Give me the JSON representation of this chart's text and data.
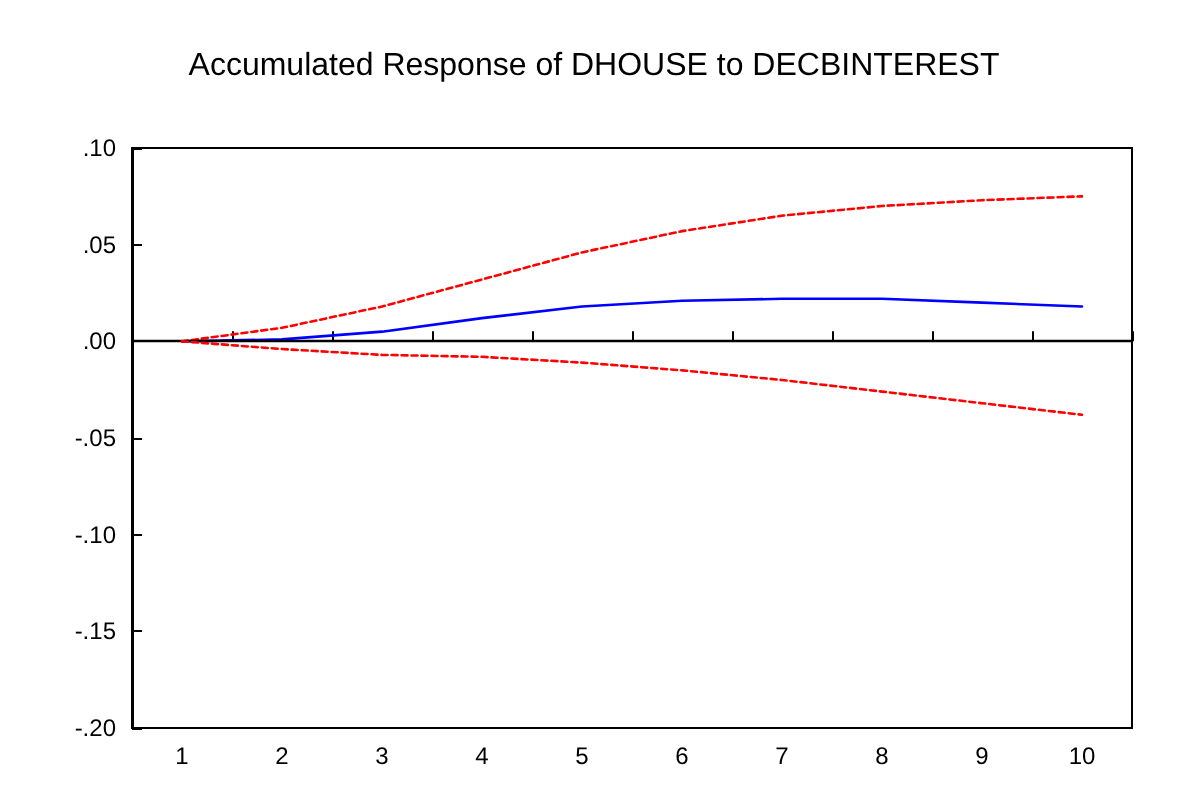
{
  "chart_data": {
    "type": "line",
    "title": "Accumulated Response of DHOUSE to DECBINTEREST",
    "categories": [
      "1",
      "2",
      "3",
      "4",
      "5",
      "6",
      "7",
      "8",
      "9",
      "10"
    ],
    "series": [
      {
        "color": "#0000ff",
        "line_style": "solid",
        "values": [
          0,
          0.001,
          0.005,
          0.012,
          0.018,
          0.021,
          0.022,
          0.022,
          0.02,
          0.018
        ]
      },
      {
        "color": "#ff0000",
        "line_style": "dashed",
        "values": [
          0,
          0.007,
          0.018,
          0.032,
          0.046,
          0.057,
          0.065,
          0.07,
          0.073,
          0.075
        ]
      },
      {
        "color": "#ff0000",
        "line_style": "dashed",
        "values": [
          0,
          -0.004,
          -0.007,
          -0.008,
          -0.011,
          -0.015,
          -0.02,
          -0.026,
          -0.032,
          -0.038
        ]
      }
    ],
    "ylim": [
      -0.2,
      0.1
    ],
    "yticks": [
      {
        "value": 0.1,
        "label": ".10"
      },
      {
        "value": 0.05,
        "label": ".05"
      },
      {
        "value": 0,
        "label": ".00"
      },
      {
        "value": -0.05,
        "label": "-.05"
      },
      {
        "value": -0.1,
        "label": "-.10"
      },
      {
        "value": -0.15,
        "label": "-.15"
      },
      {
        "value": -0.2,
        "label": "-.20"
      }
    ],
    "ref_lines": [
      {
        "axis": "y",
        "value": 0,
        "label": null,
        "color": "#000000"
      }
    ],
    "grid": false,
    "marker": "none"
  }
}
